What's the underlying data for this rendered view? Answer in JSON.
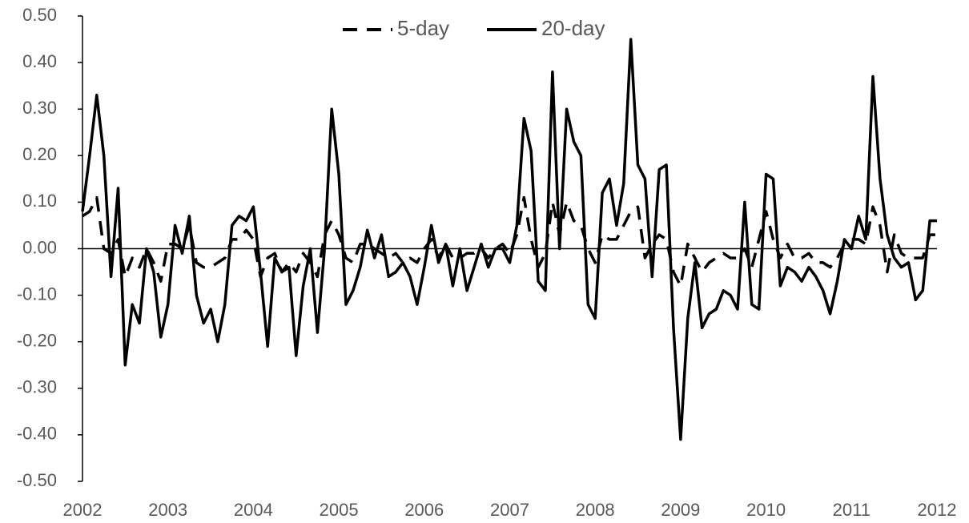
{
  "chart_data": {
    "type": "line",
    "categories": [
      "2002",
      null,
      null,
      null,
      null,
      null,
      null,
      null,
      null,
      null,
      null,
      null,
      "2003",
      null,
      null,
      null,
      null,
      null,
      null,
      null,
      null,
      null,
      null,
      null,
      "2004",
      null,
      null,
      null,
      null,
      null,
      null,
      null,
      null,
      null,
      null,
      null,
      "2005",
      null,
      null,
      null,
      null,
      null,
      null,
      null,
      null,
      null,
      null,
      null,
      "2006",
      null,
      null,
      null,
      null,
      null,
      null,
      null,
      null,
      null,
      null,
      null,
      "2007",
      null,
      null,
      null,
      null,
      null,
      null,
      null,
      null,
      null,
      null,
      null,
      "2008",
      null,
      null,
      null,
      null,
      null,
      null,
      null,
      null,
      null,
      null,
      null,
      "2009",
      null,
      null,
      null,
      null,
      null,
      null,
      null,
      null,
      null,
      null,
      null,
      "2010",
      null,
      null,
      null,
      null,
      null,
      null,
      null,
      null,
      null,
      null,
      null,
      "2011",
      null,
      null,
      null,
      null,
      null,
      null,
      null,
      null,
      null,
      null,
      null,
      "2012"
    ],
    "series": [
      {
        "name": "5-day",
        "color": "#000000",
        "dash": true,
        "values": [
          0.07,
          0.08,
          0.11,
          0.0,
          -0.01,
          0.02,
          -0.06,
          -0.02,
          -0.04,
          0.0,
          -0.03,
          -0.07,
          0.01,
          0.01,
          0.0,
          0.05,
          -0.03,
          -0.04,
          -0.04,
          -0.03,
          -0.02,
          0.02,
          0.02,
          0.04,
          0.02,
          -0.06,
          -0.02,
          -0.01,
          -0.05,
          -0.03,
          -0.05,
          -0.01,
          -0.03,
          -0.06,
          0.03,
          0.06,
          0.03,
          -0.02,
          -0.03,
          0.01,
          0.01,
          0.0,
          -0.01,
          -0.02,
          -0.01,
          -0.03,
          -0.02,
          -0.03,
          0.0,
          0.02,
          -0.02,
          0.01,
          -0.02,
          -0.02,
          -0.01,
          -0.01,
          0.0,
          -0.02,
          0.0,
          0.01,
          -0.01,
          0.03,
          0.11,
          0.02,
          -0.04,
          -0.01,
          0.1,
          0.03,
          0.1,
          0.06,
          0.05,
          0.0,
          -0.03,
          0.03,
          0.02,
          0.02,
          0.05,
          0.08,
          0.09,
          -0.02,
          0.01,
          0.03,
          0.02,
          -0.05,
          -0.08,
          0.01,
          -0.02,
          -0.05,
          -0.03,
          -0.02,
          -0.01,
          -0.02,
          -0.02,
          0.0,
          -0.04,
          0.02,
          0.08,
          0.02,
          -0.02,
          0.01,
          -0.02,
          -0.02,
          -0.01,
          -0.03,
          -0.03,
          -0.04,
          -0.02,
          0.01,
          0.02,
          0.02,
          0.01,
          0.09,
          0.05,
          -0.05,
          0.03,
          -0.01,
          -0.02,
          -0.02,
          -0.02,
          0.03,
          0.03
        ]
      },
      {
        "name": "20-day",
        "color": "#000000",
        "dash": false,
        "values": [
          0.08,
          0.2,
          0.33,
          0.2,
          -0.06,
          0.13,
          -0.25,
          -0.12,
          -0.16,
          0.0,
          -0.05,
          -0.19,
          -0.12,
          0.05,
          -0.01,
          0.07,
          -0.1,
          -0.16,
          -0.13,
          -0.2,
          -0.12,
          0.05,
          0.07,
          0.06,
          0.09,
          -0.05,
          -0.21,
          -0.02,
          -0.05,
          -0.04,
          -0.23,
          -0.08,
          0.0,
          -0.18,
          0.0,
          0.3,
          0.16,
          -0.12,
          -0.09,
          -0.04,
          0.04,
          -0.02,
          0.03,
          -0.06,
          -0.05,
          -0.03,
          -0.06,
          -0.12,
          -0.04,
          0.05,
          -0.03,
          0.01,
          -0.08,
          0.0,
          -0.09,
          -0.04,
          0.01,
          -0.04,
          0.0,
          0.0,
          -0.03,
          0.05,
          0.28,
          0.21,
          -0.07,
          -0.09,
          0.38,
          0.0,
          0.3,
          0.23,
          0.2,
          -0.12,
          -0.15,
          0.12,
          0.15,
          0.05,
          0.14,
          0.45,
          0.18,
          0.15,
          -0.06,
          0.17,
          0.18,
          -0.17,
          -0.41,
          -0.15,
          -0.03,
          -0.17,
          -0.14,
          -0.13,
          -0.09,
          -0.1,
          -0.13,
          0.1,
          -0.12,
          -0.13,
          0.16,
          0.15,
          -0.08,
          -0.04,
          -0.05,
          -0.07,
          -0.04,
          -0.06,
          -0.09,
          -0.14,
          -0.07,
          0.02,
          0.0,
          0.07,
          0.02,
          0.37,
          0.15,
          0.03,
          -0.02,
          -0.04,
          -0.03,
          -0.11,
          -0.09,
          0.06,
          0.06
        ]
      }
    ],
    "ylim": [
      -0.5,
      0.5
    ],
    "yticks": [
      {
        "value": -0.5,
        "label": "-0.50"
      },
      {
        "value": -0.4,
        "label": "-0.40"
      },
      {
        "value": -0.3,
        "label": "-0.30"
      },
      {
        "value": -0.2,
        "label": "-0.20"
      },
      {
        "value": -0.1,
        "label": "-0.10"
      },
      {
        "value": 0,
        "label": "0.00"
      },
      {
        "value": 0.1,
        "label": "0.10"
      },
      {
        "value": 0.2,
        "label": "0.20"
      },
      {
        "value": 0.3,
        "label": "0.30"
      },
      {
        "value": 0.4,
        "label": "0.40"
      },
      {
        "value": 0.5,
        "label": "0.50"
      }
    ],
    "grid": false,
    "legend": "top"
  }
}
